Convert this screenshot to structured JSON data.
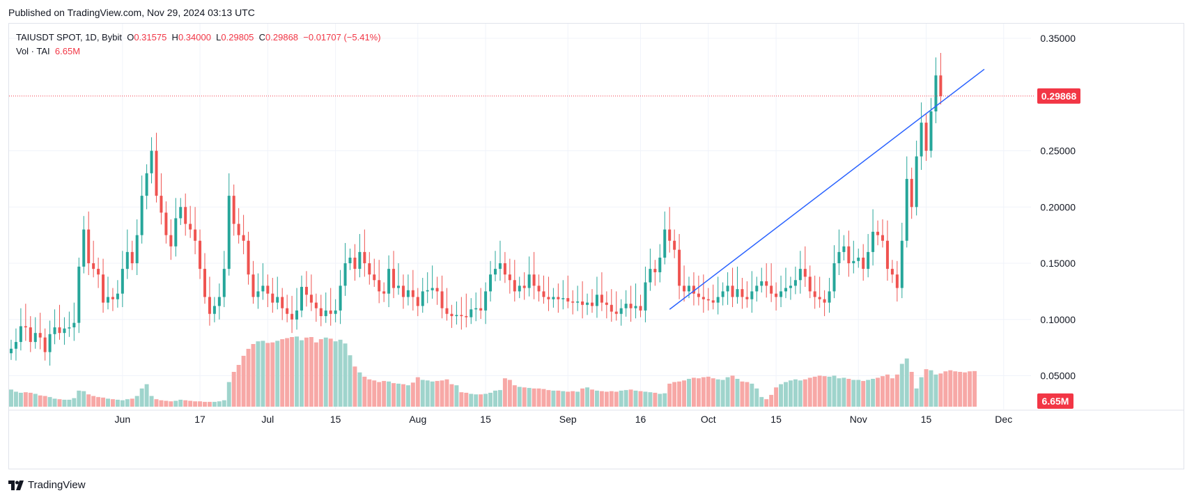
{
  "header": {
    "published": "Published on TradingView.com, Nov 29, 2024 03:13 UTC"
  },
  "legend": {
    "symbol": "TAIUSDT SPOT, 1D, Bybit",
    "o_label": "O",
    "o_value": "0.31575",
    "h_label": "H",
    "h_value": "0.34000",
    "l_label": "L",
    "l_value": "0.29805",
    "c_label": "C",
    "c_value": "0.29868",
    "change": "−0.01707 (−5.41%)",
    "vol_label": "Vol · TAI",
    "vol_value": "6.65M"
  },
  "footer": {
    "brand": "TradingView"
  },
  "colors": {
    "up": "#26a69a",
    "down": "#ef5350",
    "vol_up": "#9fd4cc",
    "vol_down": "#f7a8a6",
    "trendline": "#2962ff",
    "price_line": "#f23645"
  },
  "chart_data": {
    "type": "candlestick",
    "title": "TAIUSDT SPOT, 1D, Bybit",
    "ylim": [
      0.02,
      0.363
    ],
    "y_ticks": [
      "0.35000",
      "0.25000",
      "0.20000",
      "0.15000",
      "0.10000",
      "0.05000"
    ],
    "y_tick_values": [
      0.35,
      0.25,
      0.2,
      0.15,
      0.1,
      0.05
    ],
    "x_ticks": [
      {
        "label": "Jun",
        "index": 23
      },
      {
        "label": "17",
        "index": 39
      },
      {
        "label": "Jul",
        "index": 53
      },
      {
        "label": "15",
        "index": 67
      },
      {
        "label": "Aug",
        "index": 84
      },
      {
        "label": "15",
        "index": 98
      },
      {
        "label": "Sep",
        "index": 115
      },
      {
        "label": "16",
        "index": 130
      },
      {
        "label": "Oct",
        "index": 144
      },
      {
        "label": "15",
        "index": 158
      },
      {
        "label": "Nov",
        "index": 175
      },
      {
        "label": "15",
        "index": 189
      },
      {
        "label": "Dec",
        "index": 205
      }
    ],
    "last_price": "0.29868",
    "last_price_value": 0.29868,
    "last_volume_label": "6.65M",
    "volume_max": 13,
    "trendline": [
      {
        "index": 136,
        "value": 0.109
      },
      {
        "index": 201,
        "value": 0.3225
      }
    ],
    "closes": [
      0.074,
      0.08,
      0.094,
      0.093,
      0.08,
      0.088,
      0.084,
      0.071,
      0.087,
      0.093,
      0.088,
      0.092,
      0.093,
      0.097,
      0.147,
      0.18,
      0.15,
      0.145,
      0.14,
      0.115,
      0.12,
      0.118,
      0.123,
      0.145,
      0.16,
      0.15,
      0.175,
      0.21,
      0.23,
      0.25,
      0.21,
      0.195,
      0.175,
      0.165,
      0.19,
      0.2,
      0.185,
      0.18,
      0.17,
      0.145,
      0.12,
      0.105,
      0.112,
      0.12,
      0.145,
      0.21,
      0.185,
      0.175,
      0.17,
      0.14,
      0.12,
      0.125,
      0.13,
      0.123,
      0.115,
      0.12,
      0.11,
      0.105,
      0.1,
      0.108,
      0.129,
      0.122,
      0.115,
      0.11,
      0.103,
      0.108,
      0.105,
      0.108,
      0.13,
      0.15,
      0.155,
      0.145,
      0.16,
      0.15,
      0.14,
      0.135,
      0.125,
      0.123,
      0.145,
      0.128,
      0.13,
      0.12,
      0.126,
      0.12,
      0.112,
      0.125,
      0.126,
      0.128,
      0.125,
      0.11,
      0.105,
      0.103,
      0.104,
      0.103,
      0.102,
      0.109,
      0.11,
      0.108,
      0.125,
      0.14,
      0.145,
      0.15,
      0.14,
      0.135,
      0.125,
      0.13,
      0.128,
      0.14,
      0.13,
      0.125,
      0.12,
      0.118,
      0.12,
      0.118,
      0.119,
      0.116,
      0.115,
      0.116,
      0.113,
      0.115,
      0.112,
      0.122,
      0.115,
      0.113,
      0.107,
      0.105,
      0.11,
      0.114,
      0.11,
      0.112,
      0.108,
      0.133,
      0.145,
      0.142,
      0.155,
      0.18,
      0.17,
      0.162,
      0.13,
      0.125,
      0.13,
      0.123,
      0.12,
      0.118,
      0.117,
      0.115,
      0.12,
      0.125,
      0.13,
      0.12,
      0.127,
      0.12,
      0.118,
      0.125,
      0.13,
      0.134,
      0.13,
      0.123,
      0.12,
      0.125,
      0.128,
      0.13,
      0.135,
      0.145,
      0.138,
      0.125,
      0.12,
      0.118,
      0.115,
      0.125,
      0.15,
      0.16,
      0.165,
      0.15,
      0.152,
      0.155,
      0.145,
      0.16,
      0.178,
      0.175,
      0.17,
      0.145,
      0.14,
      0.128,
      0.17,
      0.225,
      0.2,
      0.245,
      0.275,
      0.25,
      0.285,
      0.317,
      0.29868
    ],
    "opens_first": 0.07,
    "volumes": [
      3.2,
      2.8,
      2.6,
      2.7,
      2.6,
      2.4,
      2.1,
      2.0,
      1.8,
      1.5,
      1.4,
      1.3,
      1.3,
      1.6,
      3.0,
      2.9,
      2.3,
      2.0,
      1.8,
      1.7,
      1.5,
      1.4,
      1.3,
      1.2,
      1.4,
      1.5,
      2.0,
      3.4,
      4.2,
      2.0,
      1.4,
      1.2,
      1.1,
      1.0,
      1.1,
      1.3,
      1.2,
      1.1,
      1.0,
      1.0,
      0.9,
      0.9,
      0.9,
      1.0,
      1.2,
      4.6,
      6.5,
      7.8,
      9.5,
      10.8,
      11.7,
      12.2,
      12.3,
      11.9,
      12.0,
      12.3,
      12.6,
      12.8,
      13.0,
      13.1,
      12.4,
      12.9,
      13.0,
      12.0,
      12.6,
      12.9,
      12.7,
      12.2,
      12.5,
      11.8,
      9.6,
      7.5,
      6.4,
      5.6,
      5.1,
      4.9,
      4.6,
      4.8,
      4.7,
      4.4,
      4.3,
      4.2,
      4.0,
      4.5,
      5.5,
      5.0,
      4.9,
      4.7,
      4.8,
      4.9,
      5.1,
      4.2,
      4.0,
      2.7,
      2.6,
      2.4,
      2.3,
      2.3,
      2.4,
      2.6,
      3.0,
      3.1,
      5.3,
      5.0,
      4.0,
      3.7,
      3.6,
      3.5,
      3.4,
      3.4,
      3.3,
      3.1,
      3.0,
      3.0,
      2.9,
      2.8,
      2.9,
      2.8,
      3.4,
      3.6,
      3.2,
      3.0,
      2.9,
      2.8,
      2.9,
      2.8,
      3.0,
      3.1,
      3.2,
      3.0,
      2.9,
      2.8,
      2.7,
      2.6,
      2.4,
      2.5,
      4.3,
      4.6,
      4.7,
      4.9,
      5.2,
      5.4,
      5.3,
      5.5,
      5.6,
      5.3,
      5.1,
      5.0,
      5.5,
      5.8,
      5.2,
      4.7,
      4.6,
      4.3,
      3.4,
      1.8,
      1.4,
      2.2,
      3.6,
      4.2,
      4.6,
      4.9,
      5.1,
      4.9,
      5.1,
      5.4,
      5.6,
      5.8,
      5.7,
      5.6,
      5.8,
      5.3,
      5.4,
      5.2,
      5.0,
      5.0,
      4.8,
      5.0,
      5.2,
      5.4,
      5.7,
      6.0,
      5.3,
      6.0,
      8.0,
      9.0,
      6.5,
      3.4,
      5.5,
      7.0,
      6.8,
      6.0,
      6.2,
      6.6,
      6.8,
      6.6,
      6.5,
      6.4,
      6.6,
      6.65
    ]
  }
}
